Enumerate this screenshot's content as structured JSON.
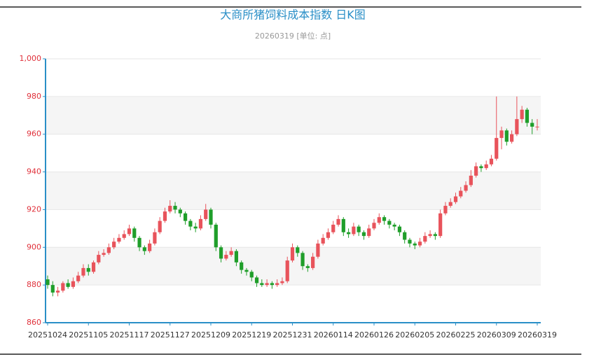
{
  "chart_data": {
    "type": "candlestick",
    "title": "大商所猪饲料成本指数 日K图",
    "subtitle": "20260319 [单位: 点]",
    "categories": [
      "20251024",
      null,
      null,
      null,
      null,
      null,
      null,
      null,
      "20251105",
      null,
      null,
      null,
      null,
      null,
      null,
      null,
      "20251117",
      null,
      null,
      null,
      null,
      null,
      null,
      null,
      "20251127",
      null,
      null,
      null,
      null,
      null,
      null,
      null,
      "20251209",
      null,
      null,
      null,
      null,
      null,
      null,
      null,
      "20251219",
      null,
      null,
      null,
      null,
      null,
      null,
      null,
      "20251231",
      null,
      null,
      null,
      null,
      null,
      null,
      null,
      "20260114",
      null,
      null,
      null,
      null,
      null,
      null,
      null,
      "20260126",
      null,
      null,
      null,
      null,
      null,
      null,
      null,
      "20260205",
      null,
      null,
      null,
      null,
      null,
      null,
      null,
      "20260225",
      null,
      null,
      null,
      null,
      null,
      null,
      null,
      "20260309",
      null,
      null,
      null,
      null,
      null,
      null,
      null,
      "20260319"
    ],
    "open": [
      883,
      880,
      876,
      877,
      881,
      879,
      882,
      885,
      889,
      887,
      892,
      896,
      897,
      900,
      903,
      905,
      907,
      910,
      905,
      900,
      898,
      902,
      908,
      914,
      919,
      922,
      920,
      918,
      914,
      911,
      910,
      915,
      920,
      912,
      900,
      894,
      896,
      898,
      892,
      888,
      887,
      884,
      881,
      880,
      881,
      880,
      881,
      882,
      893,
      900,
      897,
      890,
      889,
      895,
      902,
      905,
      908,
      912,
      915,
      908,
      907,
      911,
      908,
      906,
      910,
      913,
      916,
      914,
      912,
      911,
      908,
      904,
      902,
      901,
      903,
      906,
      907,
      906,
      918,
      922,
      924,
      927,
      930,
      933,
      938,
      943,
      942,
      944,
      947,
      958,
      962,
      956,
      960,
      968,
      973,
      966,
      964
    ],
    "high": [
      885,
      882,
      879,
      882,
      883,
      884,
      887,
      891,
      891,
      893,
      898,
      899,
      902,
      905,
      907,
      909,
      912,
      911,
      906,
      901,
      904,
      910,
      916,
      921,
      925,
      924,
      921,
      919,
      915,
      913,
      917,
      923,
      921,
      913,
      901,
      898,
      900,
      899,
      893,
      889,
      888,
      885,
      883,
      883,
      882,
      883,
      884,
      895,
      902,
      901,
      898,
      891,
      897,
      904,
      907,
      910,
      914,
      917,
      916,
      910,
      913,
      912,
      909,
      912,
      915,
      918,
      917,
      915,
      913,
      912,
      909,
      905,
      903,
      905,
      908,
      909,
      908,
      920,
      924,
      926,
      929,
      932,
      935,
      941,
      945,
      944,
      946,
      949,
      980,
      964,
      963,
      962,
      980,
      975,
      974,
      968,
      968
    ],
    "low": [
      878,
      874,
      874,
      876,
      878,
      878,
      881,
      884,
      885,
      886,
      891,
      895,
      896,
      899,
      902,
      904,
      906,
      903,
      898,
      896,
      897,
      901,
      907,
      913,
      918,
      918,
      916,
      912,
      909,
      908,
      909,
      914,
      910,
      898,
      892,
      893,
      895,
      890,
      886,
      885,
      882,
      879,
      879,
      879,
      878,
      879,
      880,
      881,
      892,
      895,
      888,
      887,
      888,
      894,
      901,
      904,
      907,
      911,
      906,
      905,
      906,
      906,
      904,
      905,
      909,
      912,
      912,
      910,
      909,
      906,
      902,
      900,
      899,
      900,
      902,
      905,
      904,
      905,
      917,
      921,
      923,
      926,
      929,
      932,
      937,
      940,
      941,
      943,
      946,
      952,
      954,
      955,
      959,
      966,
      964,
      960,
      962
    ],
    "close": [
      880,
      876,
      877,
      881,
      879,
      882,
      885,
      889,
      887,
      892,
      896,
      897,
      900,
      903,
      905,
      907,
      910,
      905,
      900,
      898,
      902,
      908,
      914,
      919,
      922,
      920,
      918,
      914,
      911,
      910,
      915,
      920,
      912,
      900,
      894,
      896,
      898,
      892,
      888,
      887,
      884,
      881,
      880,
      881,
      880,
      881,
      882,
      893,
      900,
      897,
      890,
      889,
      895,
      902,
      905,
      908,
      912,
      915,
      908,
      907,
      911,
      908,
      906,
      910,
      913,
      916,
      914,
      912,
      911,
      908,
      904,
      902,
      901,
      903,
      906,
      907,
      906,
      918,
      922,
      924,
      927,
      930,
      933,
      938,
      943,
      942,
      944,
      947,
      958,
      962,
      956,
      960,
      968,
      973,
      966,
      964,
      964
    ],
    "up_color": "#e8535b",
    "down_color": "#1f9e2a",
    "ylim": [
      860,
      1000
    ],
    "yticks": [
      860,
      880,
      900,
      920,
      940,
      960,
      980,
      {
        "value": 1000,
        "label": "1,000"
      }
    ],
    "grid": true
  }
}
